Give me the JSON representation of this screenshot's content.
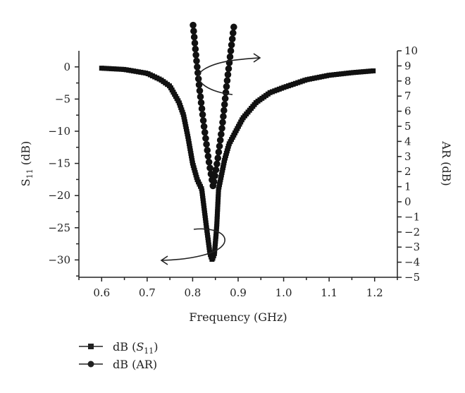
{
  "chart_data": {
    "type": "line",
    "title": "",
    "xlabel": "Frequency (GHz)",
    "ylabel_left": {
      "main": "S",
      "sub": "11",
      "suffix": " (dB)"
    },
    "ylabel_right": "AR (dB)",
    "xlim": [
      0.55,
      1.25
    ],
    "ylim_left": [
      -32.7,
      2.5
    ],
    "ylim_right": [
      -5,
      10
    ],
    "xticks": [
      "0.6",
      "0.7",
      "0.8",
      "0.9",
      "1.0",
      "1.1",
      "1.2"
    ],
    "xtick_values": [
      0.6,
      0.7,
      0.8,
      0.9,
      1.0,
      1.1,
      1.2
    ],
    "yticks_left": [
      "0",
      "−5",
      "−10",
      "−15",
      "−20",
      "−25",
      "−30"
    ],
    "ytick_left_values": [
      0,
      -5,
      -10,
      -15,
      -20,
      -25,
      -30
    ],
    "yticks_right": [
      "10",
      "9",
      "8",
      "7",
      "6",
      "5",
      "4",
      "3",
      "2",
      "1",
      "0",
      "−1",
      "−2",
      "−3",
      "−4",
      "−5"
    ],
    "ytick_right_values": [
      10,
      9,
      8,
      7,
      6,
      5,
      4,
      3,
      2,
      1,
      0,
      -1,
      -2,
      -3,
      -4,
      -5
    ],
    "grid": false,
    "legend_position": "bottom-left",
    "series": [
      {
        "name": "dB (S11)",
        "legend": {
          "prefix": "dB (",
          "main": "S",
          "sub": "11",
          "suffix": ")"
        },
        "marker": "square",
        "axis": "left",
        "x": [
          0.6,
          0.65,
          0.7,
          0.73,
          0.75,
          0.77,
          0.78,
          0.79,
          0.8,
          0.81,
          0.82,
          0.83,
          0.838,
          0.843,
          0.848,
          0.853,
          0.857,
          0.87,
          0.88,
          0.895,
          0.91,
          0.94,
          0.97,
          1.0,
          1.05,
          1.1,
          1.15,
          1.2
        ],
        "y": [
          -0.2,
          -0.4,
          -1.0,
          -2.0,
          -3.0,
          -5.5,
          -7.5,
          -11,
          -15,
          -17.5,
          -19,
          -24.7,
          -29,
          -30,
          -29,
          -24.7,
          -19,
          -14.5,
          -12,
          -10,
          -8,
          -5.5,
          -4,
          -3.2,
          -2,
          -1.3,
          -0.9,
          -0.6
        ]
      },
      {
        "name": "dB (AR)",
        "legend": {
          "prefix": "dB (AR)",
          "main": "",
          "sub": "",
          "suffix": ""
        },
        "marker": "circle",
        "axis": "right",
        "x": [
          0.801,
          0.808,
          0.815,
          0.825,
          0.835,
          0.845,
          0.855,
          0.865,
          0.875,
          0.883,
          0.891
        ],
        "y": [
          11.7,
          9.5,
          7.5,
          5,
          2.8,
          1.0,
          2.8,
          5,
          7.8,
          9.8,
          11.7
        ]
      }
    ]
  }
}
